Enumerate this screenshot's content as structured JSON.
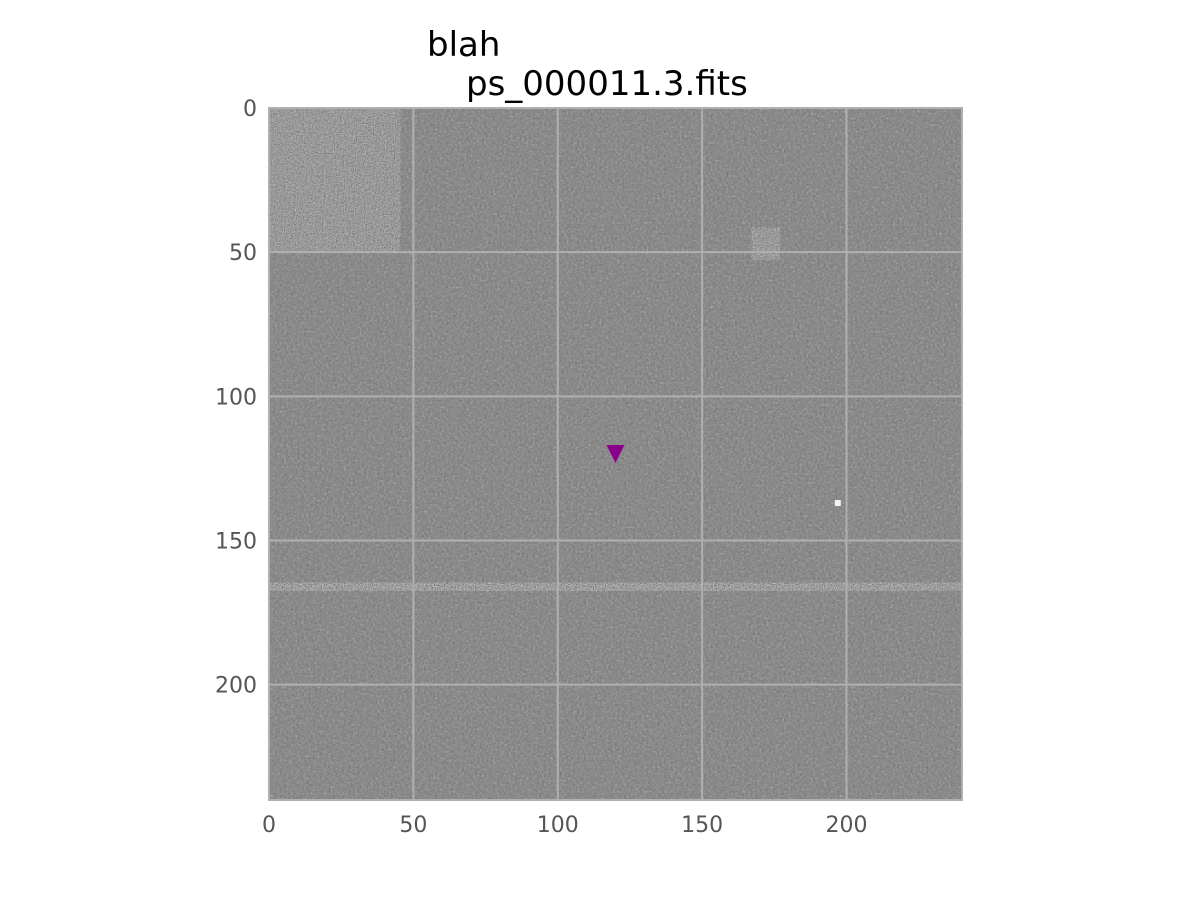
{
  "figure": {
    "title_lines": [
      "blah",
      "ps_000011.3.fits"
    ]
  },
  "image_panel": {
    "colormap": "gray",
    "grid": true,
    "grid_color": "#b0b0b0",
    "frame_color": "#b0b0b0",
    "tick_color": "#555555",
    "background_gray": "#7a7a7a",
    "x_range": [
      0,
      240
    ],
    "y_range": [
      240,
      0
    ],
    "x_ticks": [
      0,
      50,
      100,
      150,
      200
    ],
    "y_ticks": [
      0,
      50,
      100,
      150,
      200
    ],
    "x_tick_labels": [
      "0",
      "50",
      "100",
      "150",
      "200"
    ],
    "y_tick_labels": [
      "0",
      "50",
      "100",
      "150",
      "200"
    ],
    "marker": {
      "shape": "triangle-down",
      "color": "#8b008b",
      "x": 120,
      "y": 120
    },
    "features": [
      {
        "name": "noisy-patch-top-left",
        "x_range": [
          0,
          42
        ],
        "y_range": [
          0,
          50
        ]
      },
      {
        "name": "dark-spot",
        "x_center": 172,
        "y_center": 47
      },
      {
        "name": "bright-speck",
        "x_center": 197,
        "y_center": 137
      },
      {
        "name": "horizontal-streak",
        "y_center": 166,
        "x_range": [
          0,
          240
        ]
      }
    ]
  }
}
